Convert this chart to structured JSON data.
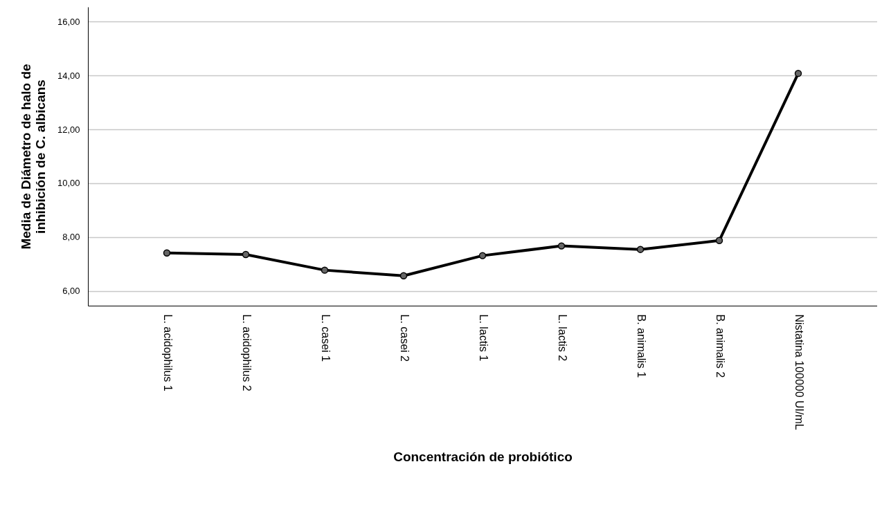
{
  "chart_data": {
    "type": "line",
    "xlabel": "Concentración de probiótico",
    "ylabel": "Media de Diámetro de halo de\ninhibición de C. albicans",
    "categories": [
      "L. acidophilus 1",
      "L. acidophilus 2",
      "L. casei 1",
      "L. casei 2",
      "L. lactis 1",
      "L. lactis 2",
      "B. animalis 1",
      "B. animalis 2",
      "Nistatina 100000 UI/mL"
    ],
    "series": [
      {
        "color": "#000000",
        "values": [
          7.41,
          7.35,
          6.77,
          6.56,
          7.31,
          7.67,
          7.54,
          7.87,
          14.08
        ]
      }
    ],
    "ylim": [
      5.45,
      16.55
    ],
    "yticks": [
      {
        "value": 6,
        "label": "6,00"
      },
      {
        "value": 8,
        "label": "8,00"
      },
      {
        "value": 10,
        "label": "10,00"
      },
      {
        "value": 12,
        "label": "12,00"
      },
      {
        "value": 14,
        "label": "14,00"
      },
      {
        "value": 16,
        "label": "16,00"
      }
    ],
    "grid": "y",
    "marker": "circle",
    "line_style": "solid"
  }
}
